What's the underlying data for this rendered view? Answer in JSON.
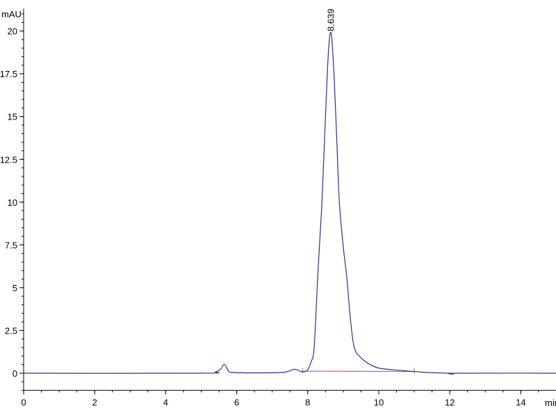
{
  "chart_data": {
    "type": "line",
    "title": "",
    "ylabel": "mAU",
    "xlabel": "min",
    "xlim": [
      0,
      15.1
    ],
    "ylim": [
      -1.0,
      21.3
    ],
    "x_ticks": [
      0,
      2,
      4,
      6,
      8,
      10,
      12,
      14
    ],
    "x_tick_labels": [
      "0",
      "2",
      "4",
      "6",
      "8",
      "10",
      "12",
      "14"
    ],
    "y_ticks": [
      0,
      2.5,
      5,
      7.5,
      10,
      12.5,
      15,
      17.5,
      20
    ],
    "y_tick_labels": [
      "0",
      "2.5",
      "5",
      "7.5",
      "10",
      "12.5",
      "15",
      "17.5",
      "20"
    ],
    "x_minor_step": 0.5,
    "y_minor_step": 0.5,
    "grid": false,
    "colors": {
      "trace": "#2b2f8a",
      "baseline": "#e040c8",
      "axis": "#000000"
    },
    "series": [
      {
        "x": [
          0,
          5.0,
          5.4,
          5.55,
          5.65,
          5.75,
          5.85,
          6.5,
          7.3,
          7.6,
          7.7,
          7.85,
          8.0,
          8.1,
          8.18,
          8.28,
          8.34,
          8.4,
          8.47,
          8.55,
          8.6,
          8.639,
          8.68,
          8.75,
          8.82,
          8.89,
          9.0,
          9.1,
          9.2,
          9.31,
          9.5,
          9.76,
          10.0,
          10.4,
          10.8,
          11.0,
          11.5,
          12.0,
          12.1,
          12.2,
          15.1
        ],
        "y": [
          0,
          0,
          0.08,
          0.25,
          0.52,
          0.2,
          0.05,
          0.02,
          0.05,
          0.22,
          0.2,
          0.08,
          0.2,
          0.7,
          1.5,
          5.6,
          7.8,
          10.0,
          13.5,
          17.5,
          19.3,
          19.9,
          19.5,
          17.0,
          13.5,
          10.0,
          7.4,
          5.6,
          3.2,
          1.5,
          0.9,
          0.5,
          0.3,
          0.2,
          0.13,
          0.1,
          0.03,
          0.0,
          -0.05,
          0.0,
          0
        ]
      }
    ],
    "integration_baseline": {
      "x": [
        7.85,
        11.0
      ],
      "y": [
        0.12,
        0.1
      ]
    },
    "peak_labels": [
      {
        "x": 8.639,
        "y": 19.9,
        "label": "8.639"
      }
    ]
  }
}
